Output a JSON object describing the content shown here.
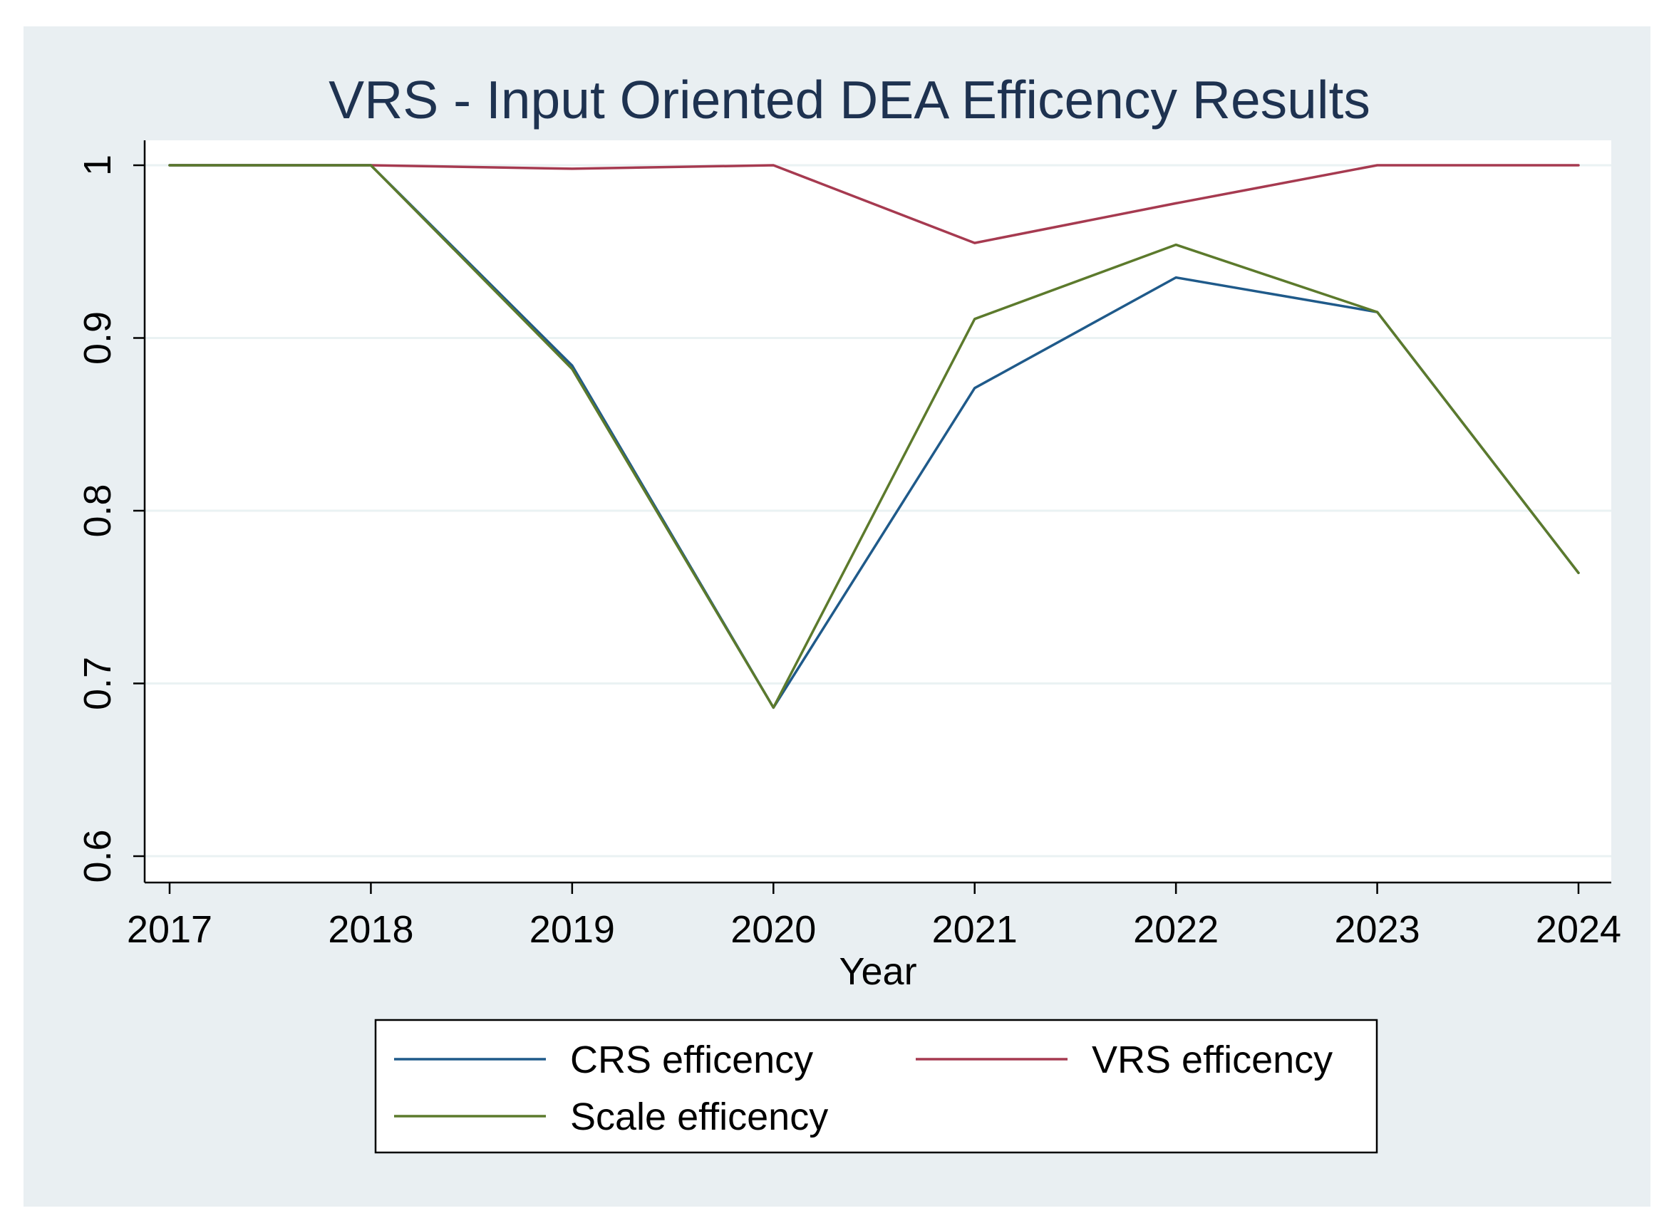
{
  "chart_data": {
    "type": "line",
    "title": "VRS - Input Oriented DEA Efficency Results",
    "xlabel": "Year",
    "ylabel": "",
    "x": [
      2017,
      2018,
      2019,
      2020,
      2021,
      2022,
      2023,
      2024
    ],
    "x_tick_labels": [
      "2017",
      "2018",
      "2019",
      "2020",
      "2021",
      "2022",
      "2023",
      "2024"
    ],
    "ylim": [
      0.6,
      1.0
    ],
    "y_ticks": [
      0.6,
      0.7,
      0.8,
      0.9,
      1.0
    ],
    "y_tick_labels": [
      "0.6",
      "0.7",
      "0.8",
      "0.9",
      "1"
    ],
    "grid": true,
    "legend_position": "bottom",
    "series": [
      {
        "name": "CRS efficency",
        "color": "#1f5a8a",
        "values": [
          1.0,
          1.0,
          0.884,
          0.686,
          0.871,
          0.935,
          0.915,
          0.764
        ]
      },
      {
        "name": "VRS efficency",
        "color": "#a63a50",
        "values": [
          1.0,
          1.0,
          0.998,
          1.0,
          0.955,
          0.978,
          1.0,
          1.0
        ]
      },
      {
        "name": "Scale efficency",
        "color": "#5c7a2c",
        "values": [
          1.0,
          1.0,
          0.882,
          0.686,
          0.911,
          0.954,
          0.915,
          0.764
        ]
      }
    ],
    "colors": {
      "outer_background": "#e9eff2",
      "plot_background": "#ffffff",
      "gridline": "#eaf2f3",
      "axis": "#000000",
      "title": "#1e3250"
    }
  }
}
